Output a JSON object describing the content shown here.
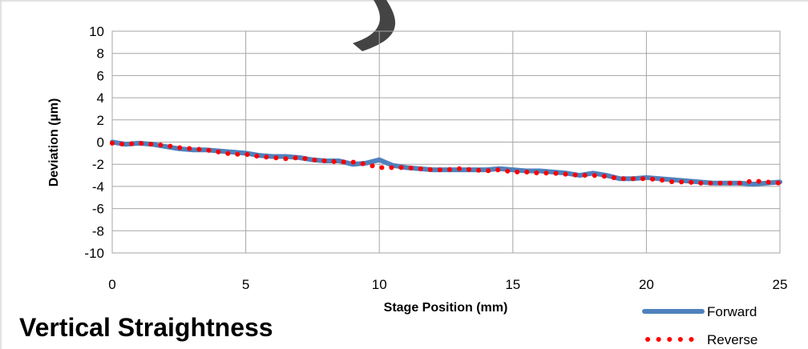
{
  "chart_data": {
    "type": "line",
    "title": "Vertical Straightness",
    "xlabel": "Stage Position (mm)",
    "ylabel": "Deviation (µm)",
    "xlim": [
      0,
      25
    ],
    "ylim": [
      -10,
      10
    ],
    "xticks": [
      0,
      5,
      10,
      15,
      20,
      25
    ],
    "yticks": [
      10,
      8,
      6,
      4,
      2,
      0,
      -2,
      -4,
      -6,
      -8,
      -10
    ],
    "xtick_labels": [
      "0",
      "5",
      "10",
      "15",
      "20",
      "25"
    ],
    "ytick_labels": [
      "10",
      "8",
      "6",
      "4",
      "2",
      "0",
      "-2",
      "-4",
      "-6",
      "-8",
      "-10"
    ],
    "grid": true,
    "legend_position": "bottom-right",
    "series": [
      {
        "name": "Forward",
        "style": "solid",
        "color": "#4f81bd",
        "x": [
          0,
          0.5,
          1,
          1.5,
          2,
          2.5,
          3,
          3.5,
          4,
          4.5,
          5,
          5.5,
          6,
          6.5,
          7,
          7.5,
          8,
          8.5,
          9,
          9.5,
          10,
          10.5,
          11,
          11.5,
          12,
          12.5,
          13,
          13.5,
          14,
          14.5,
          15,
          15.5,
          16,
          16.5,
          17,
          17.5,
          18,
          18.5,
          19,
          19.5,
          20,
          20.5,
          21,
          21.5,
          22,
          22.5,
          23,
          23.5,
          24,
          24.5,
          25
        ],
        "y": [
          0,
          -0.2,
          -0.1,
          -0.2,
          -0.4,
          -0.6,
          -0.7,
          -0.7,
          -0.8,
          -0.9,
          -1.0,
          -1.2,
          -1.3,
          -1.3,
          -1.4,
          -1.6,
          -1.7,
          -1.7,
          -2.0,
          -1.9,
          -1.6,
          -2.1,
          -2.3,
          -2.4,
          -2.5,
          -2.5,
          -2.5,
          -2.5,
          -2.5,
          -2.4,
          -2.5,
          -2.6,
          -2.6,
          -2.7,
          -2.8,
          -3.0,
          -2.8,
          -3.0,
          -3.3,
          -3.3,
          -3.2,
          -3.3,
          -3.4,
          -3.5,
          -3.6,
          -3.7,
          -3.7,
          -3.7,
          -3.8,
          -3.7,
          -3.6
        ]
      },
      {
        "name": "Reverse",
        "style": "dotted",
        "color": "#ff0000",
        "x": [
          0,
          0.5,
          1,
          1.5,
          2,
          2.5,
          3,
          3.5,
          4,
          4.5,
          5,
          5.5,
          6,
          6.5,
          7,
          7.5,
          8,
          8.5,
          9,
          9.5,
          10,
          10.5,
          11,
          11.5,
          12,
          12.5,
          13,
          13.5,
          14,
          14.5,
          15,
          15.5,
          16,
          16.5,
          17,
          17.5,
          18,
          18.5,
          19,
          19.5,
          20,
          20.5,
          21,
          21.5,
          22,
          22.5,
          23,
          23.5,
          24,
          24.5,
          25
        ],
        "y": [
          -0.1,
          -0.2,
          -0.1,
          -0.2,
          -0.3,
          -0.5,
          -0.6,
          -0.7,
          -0.9,
          -1.1,
          -1.1,
          -1.3,
          -1.4,
          -1.5,
          -1.4,
          -1.6,
          -1.7,
          -1.8,
          -1.8,
          -2.0,
          -2.3,
          -2.3,
          -2.3,
          -2.4,
          -2.5,
          -2.5,
          -2.4,
          -2.5,
          -2.6,
          -2.5,
          -2.7,
          -2.7,
          -2.8,
          -2.8,
          -2.9,
          -3.0,
          -3.0,
          -3.1,
          -3.3,
          -3.3,
          -3.3,
          -3.4,
          -3.6,
          -3.6,
          -3.7,
          -3.7,
          -3.7,
          -3.7,
          -3.5,
          -3.6,
          -3.7
        ]
      }
    ]
  }
}
